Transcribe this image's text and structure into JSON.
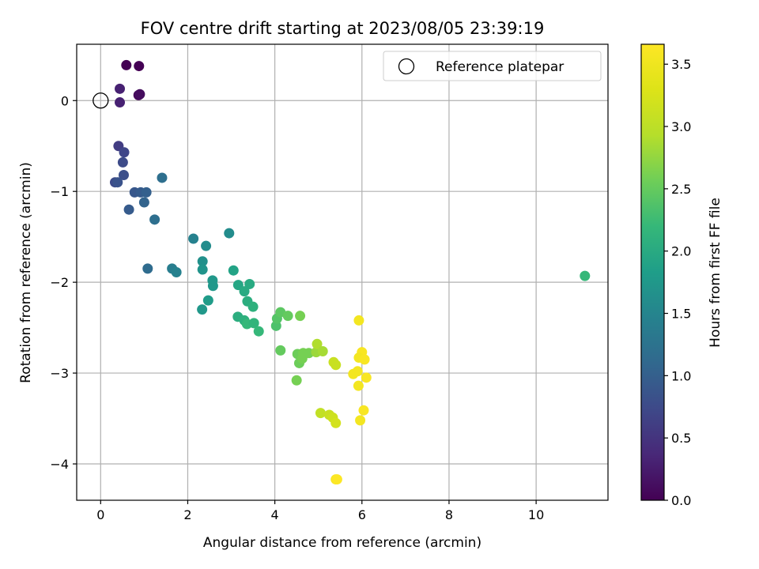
{
  "chart_data": {
    "type": "scatter",
    "title": "FOV centre drift starting at 2023/08/05 23:39:19",
    "xlabel": "Angular distance from reference (arcmin)",
    "ylabel": "Rotation from reference (arcmin)",
    "xlim": [
      -0.55,
      11.65
    ],
    "ylim": [
      -4.4,
      0.62
    ],
    "xticks": [
      0,
      2,
      4,
      6,
      8,
      10
    ],
    "yticks": [
      0,
      -1,
      -2,
      -3,
      -4
    ],
    "xtick_labels": [
      "0",
      "2",
      "4",
      "6",
      "8",
      "10"
    ],
    "ytick_labels": [
      "0",
      "−1",
      "−2",
      "−3",
      "−4"
    ],
    "grid": true,
    "legend_position": "top-right",
    "reference": {
      "name": "Reference platepar",
      "x": 0,
      "y": 0
    },
    "colorbar": {
      "label": "Hours from first FF file",
      "colormap": "viridis",
      "range": [
        0,
        3.66
      ],
      "ticks": [
        0,
        0.5,
        1,
        1.5,
        2,
        2.5,
        3,
        3.5
      ],
      "tick_labels": [
        "0.0",
        "0.5",
        "1.0",
        "1.5",
        "2.0",
        "2.5",
        "3.0",
        "3.5"
      ]
    },
    "points": [
      [
        0.59,
        0.39,
        0.0
      ],
      [
        0.88,
        0.38,
        0.0
      ],
      [
        0.87,
        0.06,
        0.05
      ],
      [
        0.9,
        0.07,
        0.1
      ],
      [
        0.44,
        0.13,
        0.3
      ],
      [
        0.44,
        -0.02,
        0.3
      ],
      [
        0.41,
        -0.5,
        0.6
      ],
      [
        0.54,
        -0.57,
        0.7
      ],
      [
        0.51,
        -0.68,
        0.75
      ],
      [
        0.53,
        -0.82,
        0.8
      ],
      [
        0.33,
        -0.9,
        0.75
      ],
      [
        0.39,
        -0.9,
        0.85
      ],
      [
        0.78,
        -1.01,
        0.9
      ],
      [
        0.92,
        -1.01,
        0.95
      ],
      [
        1.05,
        -1.01,
        1.0
      ],
      [
        0.65,
        -1.2,
        0.95
      ],
      [
        1.0,
        -1.12,
        1.05
      ],
      [
        1.41,
        -0.85,
        1.2
      ],
      [
        1.24,
        -1.31,
        1.2
      ],
      [
        1.08,
        -1.85,
        1.15
      ],
      [
        1.64,
        -1.85,
        1.4
      ],
      [
        1.74,
        -1.89,
        1.45
      ],
      [
        2.13,
        -1.52,
        1.45
      ],
      [
        2.42,
        -1.6,
        1.6
      ],
      [
        2.34,
        -1.77,
        1.65
      ],
      [
        2.34,
        -1.86,
        1.7
      ],
      [
        2.57,
        -1.98,
        1.75
      ],
      [
        2.58,
        -2.04,
        1.75
      ],
      [
        2.47,
        -2.2,
        1.8
      ],
      [
        2.33,
        -2.3,
        1.75
      ],
      [
        2.95,
        -1.46,
        1.6
      ],
      [
        3.05,
        -1.87,
        1.9
      ],
      [
        3.16,
        -2.03,
        1.95
      ],
      [
        3.3,
        -2.1,
        2.0
      ],
      [
        3.42,
        -2.02,
        2.0
      ],
      [
        3.37,
        -2.21,
        2.05
      ],
      [
        3.5,
        -2.27,
        2.1
      ],
      [
        3.15,
        -2.38,
        2.05
      ],
      [
        3.3,
        -2.42,
        2.1
      ],
      [
        3.36,
        -2.46,
        2.2
      ],
      [
        3.52,
        -2.45,
        2.15
      ],
      [
        3.63,
        -2.54,
        2.2
      ],
      [
        4.03,
        -2.48,
        2.35
      ],
      [
        4.05,
        -2.4,
        2.4
      ],
      [
        4.13,
        -2.33,
        2.45
      ],
      [
        4.3,
        -2.37,
        2.5
      ],
      [
        4.58,
        -2.37,
        2.6
      ],
      [
        4.13,
        -2.75,
        2.5
      ],
      [
        4.52,
        -2.79,
        2.55
      ],
      [
        4.56,
        -2.89,
        2.55
      ],
      [
        4.63,
        -2.84,
        2.6
      ],
      [
        4.65,
        -2.78,
        2.6
      ],
      [
        4.78,
        -2.78,
        2.6
      ],
      [
        4.5,
        -3.08,
        2.6
      ],
      [
        4.95,
        -2.77,
        2.8
      ],
      [
        4.97,
        -2.68,
        2.9
      ],
      [
        5.1,
        -2.76,
        2.85
      ],
      [
        5.35,
        -2.88,
        3.1
      ],
      [
        5.4,
        -2.91,
        3.1
      ],
      [
        5.05,
        -3.44,
        3.05
      ],
      [
        5.25,
        -3.46,
        3.1
      ],
      [
        5.33,
        -3.49,
        3.15
      ],
      [
        5.4,
        -3.55,
        3.2
      ],
      [
        5.93,
        -2.42,
        3.55
      ],
      [
        6.0,
        -2.77,
        3.6
      ],
      [
        5.93,
        -2.83,
        3.55
      ],
      [
        6.06,
        -2.85,
        3.6
      ],
      [
        5.8,
        -3.01,
        3.55
      ],
      [
        5.9,
        -2.98,
        3.55
      ],
      [
        6.1,
        -3.05,
        3.6
      ],
      [
        5.92,
        -3.14,
        3.55
      ],
      [
        6.04,
        -3.41,
        3.6
      ],
      [
        5.96,
        -3.52,
        3.55
      ],
      [
        5.4,
        -4.17,
        3.6
      ],
      [
        5.43,
        -4.17,
        3.65
      ],
      [
        11.12,
        -1.93,
        2.2
      ]
    ]
  }
}
